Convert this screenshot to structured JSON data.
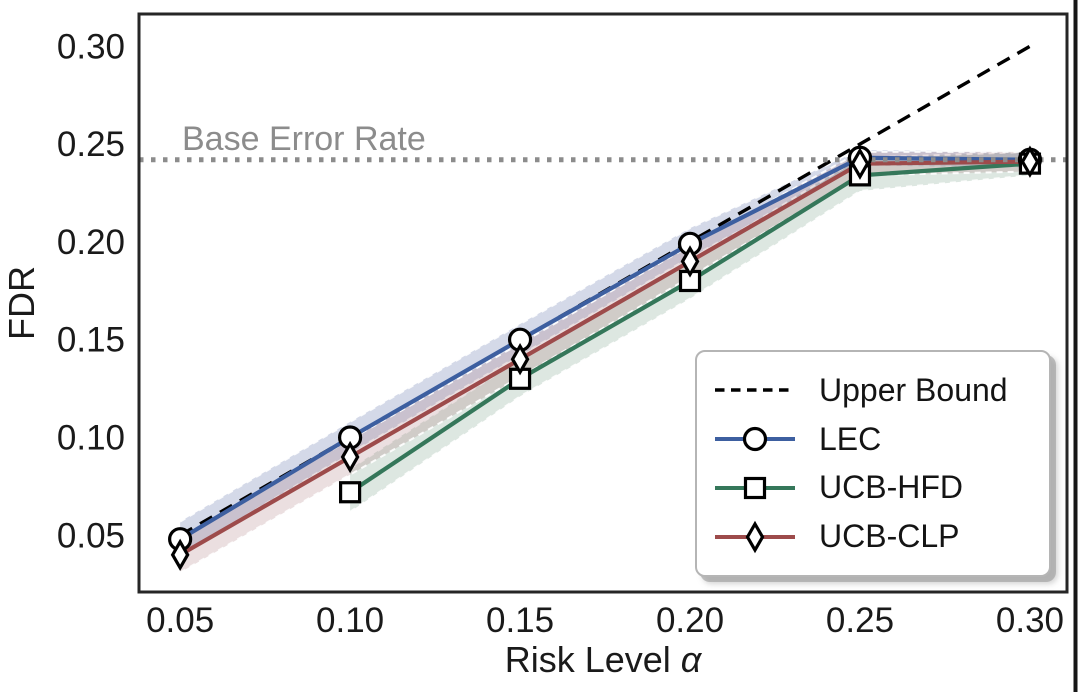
{
  "chart_data": {
    "type": "line",
    "title": "",
    "xlabel": {
      "text": "Risk Level ",
      "symbol": "α"
    },
    "ylabel": "FDR",
    "xlim": [
      0.0379,
      0.3109
    ],
    "ylim": [
      0.021,
      0.3165
    ],
    "grid": false,
    "x_ticks": {
      "values": [
        0.05,
        0.1,
        0.15,
        0.2,
        0.25,
        0.3
      ],
      "labels": [
        "0.05",
        "0.10",
        "0.15",
        "0.20",
        "0.25",
        "0.30"
      ]
    },
    "y_ticks": {
      "values": [
        0.05,
        0.1,
        0.15,
        0.2,
        0.25,
        0.3
      ],
      "labels": [
        "0.05",
        "0.10",
        "0.15",
        "0.20",
        "0.25",
        "0.30"
      ]
    },
    "reference_lines": {
      "upper_bound": {
        "label": "Upper Bound",
        "style": "dashed",
        "color": "#000000",
        "x": [
          0.05,
          0.3
        ],
        "y": [
          0.05,
          0.3
        ]
      },
      "base_error_rate": {
        "label": "Base Error Rate",
        "style": "dotted",
        "color": "#8c8c8c",
        "value": 0.242
      }
    },
    "series": [
      {
        "name": "LEC",
        "color": "#3d5fa0",
        "marker": "circle",
        "band_fill": "rgba(102,118,173,0.28)",
        "x": [
          0.05,
          0.1,
          0.15,
          0.2,
          0.25,
          0.3
        ],
        "y": [
          0.048,
          0.1,
          0.15,
          0.199,
          0.243,
          0.242
        ],
        "band_lower": [
          0.04,
          0.092,
          0.142,
          0.192,
          0.239,
          0.238
        ],
        "band_upper": [
          0.057,
          0.108,
          0.158,
          0.207,
          0.247,
          0.246
        ]
      },
      {
        "name": "UCB-HFD",
        "color": "#35775a",
        "marker": "square",
        "band_fill": "rgba(120,160,135,0.25)",
        "x": [
          0.1,
          0.15,
          0.2,
          0.25,
          0.3
        ],
        "y": [
          0.072,
          0.13,
          0.18,
          0.234,
          0.24
        ],
        "band_lower": [
          0.062,
          0.121,
          0.171,
          0.226,
          0.234
        ],
        "band_upper": [
          0.084,
          0.14,
          0.19,
          0.243,
          0.246
        ]
      },
      {
        "name": "UCB-CLP",
        "color": "#9d4b4b",
        "marker": "diamond",
        "band_fill": "rgba(165,110,115,0.22)",
        "x": [
          0.05,
          0.1,
          0.15,
          0.2,
          0.25,
          0.3
        ],
        "y": [
          0.04,
          0.09,
          0.14,
          0.19,
          0.24,
          0.241
        ],
        "band_lower": [
          0.031,
          0.081,
          0.131,
          0.182,
          0.234,
          0.236
        ],
        "band_upper": [
          0.049,
          0.099,
          0.148,
          0.198,
          0.246,
          0.246
        ]
      }
    ],
    "legend": {
      "position": "lower right",
      "entries": [
        {
          "label": "Upper Bound",
          "color": "#000000",
          "line": "dashed",
          "marker": "none"
        },
        {
          "label": "LEC",
          "color": "#3d5fa0",
          "line": "solid",
          "marker": "circle"
        },
        {
          "label": "UCB-HFD",
          "color": "#35775a",
          "line": "solid",
          "marker": "square"
        },
        {
          "label": "UCB-CLP",
          "color": "#9d4b4b",
          "line": "solid",
          "marker": "diamond"
        }
      ]
    }
  }
}
